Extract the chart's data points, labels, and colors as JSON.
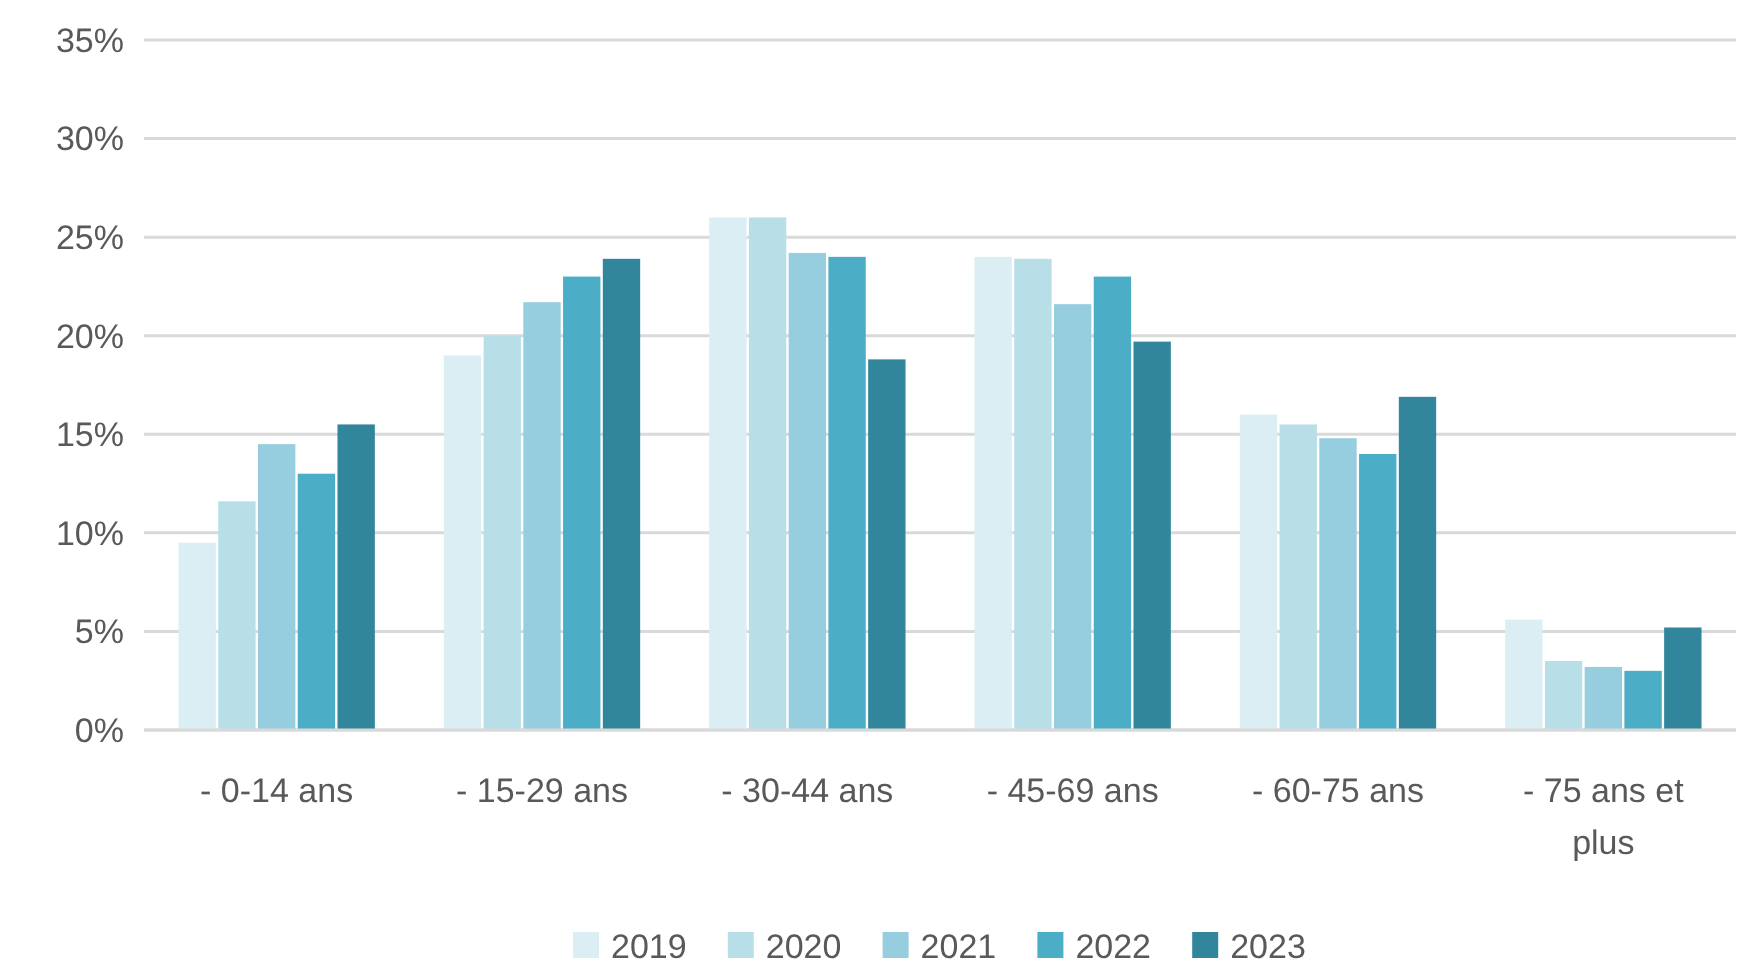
{
  "chart_data": {
    "type": "bar",
    "categories": [
      "- 0-14 ans",
      "- 15-29 ans",
      "- 30-44 ans",
      "- 45-69 ans",
      "- 60-75 ans",
      "- 75 ans et plus"
    ],
    "series": [
      {
        "name": "2019",
        "color": "#dbeef4",
        "values": [
          9.5,
          19.0,
          26.0,
          24.0,
          16.0,
          5.6
        ]
      },
      {
        "name": "2020",
        "color": "#b8dfe8",
        "values": [
          11.6,
          20.0,
          26.0,
          23.9,
          15.5,
          3.5
        ]
      },
      {
        "name": "2021",
        "color": "#96cddf",
        "values": [
          14.5,
          21.7,
          24.2,
          21.6,
          14.8,
          3.2
        ]
      },
      {
        "name": "2022",
        "color": "#4badc6",
        "values": [
          13.0,
          23.0,
          24.0,
          23.0,
          14.0,
          3.0
        ]
      },
      {
        "name": "2023",
        "color": "#31869b",
        "values": [
          15.5,
          23.9,
          18.8,
          19.7,
          16.9,
          5.2
        ]
      }
    ],
    "ylim": [
      0,
      35
    ],
    "yticks": [
      {
        "value": 0,
        "label": "0%"
      },
      {
        "value": 5,
        "label": "5%"
      },
      {
        "value": 10,
        "label": "10%"
      },
      {
        "value": 15,
        "label": "15%"
      },
      {
        "value": 20,
        "label": "20%"
      },
      {
        "value": 25,
        "label": "25%"
      },
      {
        "value": 30,
        "label": "30%"
      },
      {
        "value": 35,
        "label": "35%"
      }
    ],
    "grid": "y",
    "legend": "bottom"
  }
}
